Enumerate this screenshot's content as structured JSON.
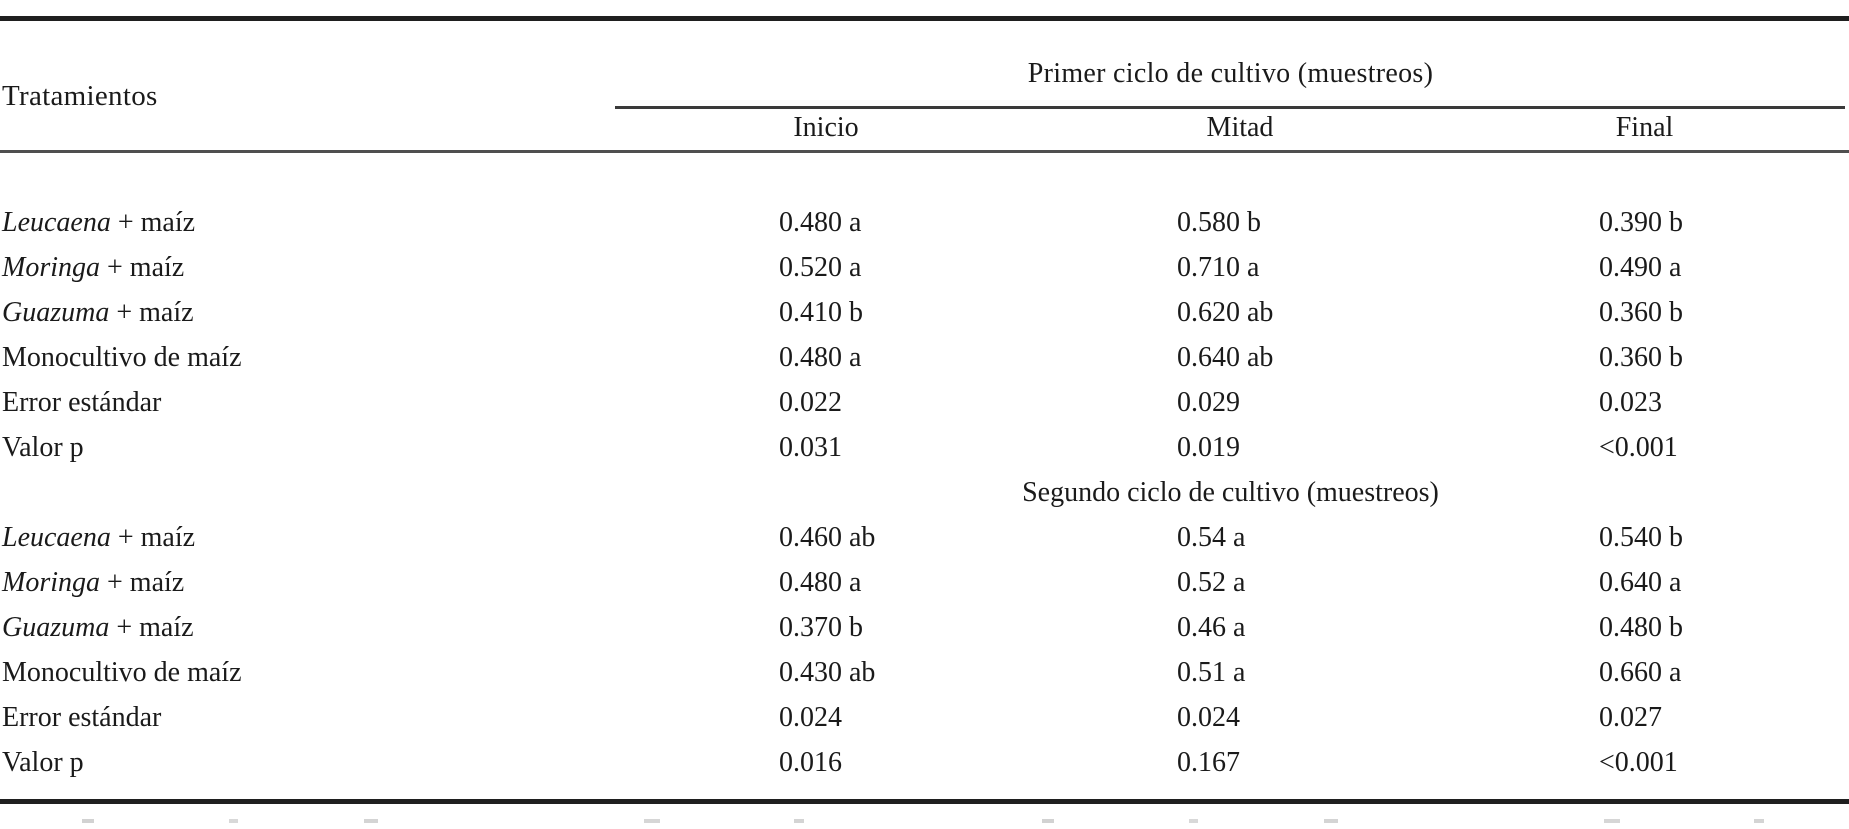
{
  "colors": {
    "background": "#ffffff",
    "text": "#1a1a1a",
    "rule_heavy": "#1f1f1f",
    "rule_light": "#4f4f4f"
  },
  "table": {
    "row_header": "Tratamientos",
    "sections": [
      {
        "title": "Primer ciclo de cultivo (muestreos)",
        "columns": [
          "Inicio",
          "Mitad",
          "Final"
        ],
        "rows": [
          {
            "label_italic": "Leucaena",
            "label_rest": " + maíz",
            "values": [
              "0.480 a",
              "0.580 b",
              "0.390 b"
            ]
          },
          {
            "label_italic": "Moringa",
            "label_rest": " + maíz",
            "values": [
              "0.520 a",
              "0.710 a",
              "0.490 a"
            ]
          },
          {
            "label_italic": "Guazuma",
            "label_rest": " + maíz",
            "values": [
              "0.410 b",
              "0.620 ab",
              "0.360 b"
            ]
          },
          {
            "label_italic": "",
            "label_rest": "Monocultivo de maíz",
            "values": [
              "0.480 a",
              "0.640 ab",
              "0.360 b"
            ]
          },
          {
            "label_italic": "",
            "label_rest": "Error estándar",
            "values": [
              "0.022",
              "0.029",
              "0.023"
            ]
          },
          {
            "label_italic": "",
            "label_rest": "Valor p",
            "values": [
              "0.031",
              "0.019",
              "<0.001"
            ]
          }
        ]
      },
      {
        "title": "Segundo ciclo de cultivo (muestreos)",
        "rows": [
          {
            "label_italic": "Leucaena",
            "label_rest": " + maíz",
            "values": [
              "0.460 ab",
              "0.54 a",
              "0.540 b"
            ]
          },
          {
            "label_italic": "Moringa",
            "label_rest": " + maíz",
            "values": [
              "0.480 a",
              "0.52 a",
              "0.640 a"
            ]
          },
          {
            "label_italic": "Guazuma",
            "label_rest": " + maíz",
            "values": [
              "0.370 b",
              "0.46 a",
              "0.480 b"
            ]
          },
          {
            "label_italic": "",
            "label_rest": "Monocultivo de maíz",
            "values": [
              "0.430 ab",
              "0.51 a",
              "0.660 a"
            ]
          },
          {
            "label_italic": "",
            "label_rest": "Error estándar",
            "values": [
              "0.024",
              "0.024",
              "0.027"
            ]
          },
          {
            "label_italic": "",
            "label_rest": "Valor p",
            "values": [
              "0.016",
              "0.167",
              "<0.001"
            ]
          }
        ]
      }
    ]
  }
}
